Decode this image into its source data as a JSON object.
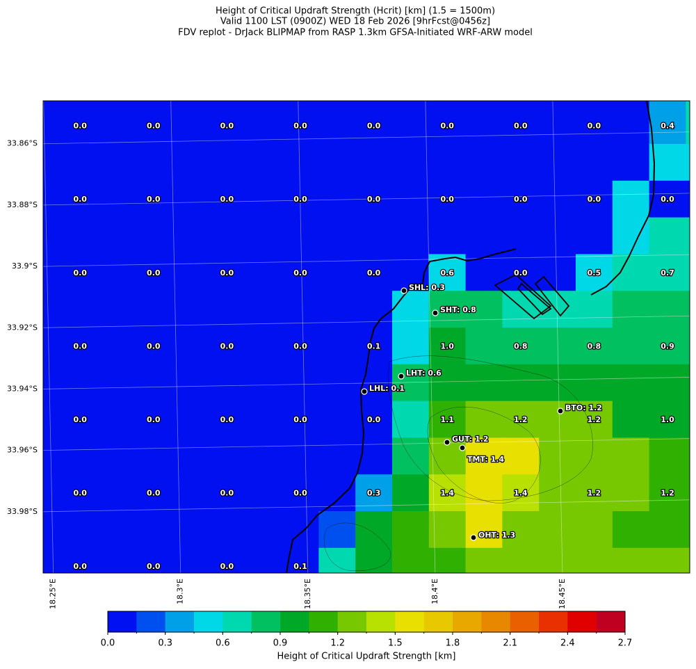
{
  "figure": {
    "title": [
      "Height of Critical Updraft Strength (Hcrit) [km] (1.5 = 1500m)",
      "Valid 1100 LST (0900Z) WED 18 Feb 2026 [9hrFcst@0456z]",
      "FDV replot - DrJack BLIPMAP from RASP 1.3km GFSA-Initiated WRF-ARW model"
    ],
    "xlim": [
      18.246,
      18.5
    ],
    "ylim": [
      -34.0,
      -33.846
    ],
    "xticks": [
      {
        "value": 18.25,
        "label": "18.25°E"
      },
      {
        "value": 18.3,
        "label": "18.3°E"
      },
      {
        "value": 18.35,
        "label": "18.35°E"
      },
      {
        "value": 18.4,
        "label": "18.4°E"
      },
      {
        "value": 18.45,
        "label": "18.45°E"
      }
    ],
    "yticks": [
      {
        "value": -33.86,
        "label": "33.86°S"
      },
      {
        "value": -33.88,
        "label": "33.88°S"
      },
      {
        "value": -33.9,
        "label": "33.9°S"
      },
      {
        "value": -33.92,
        "label": "33.92°S"
      },
      {
        "value": -33.94,
        "label": "33.94°S"
      },
      {
        "value": -33.96,
        "label": "33.96°S"
      },
      {
        "value": -33.98,
        "label": "33.98°S"
      }
    ],
    "grid": true,
    "cells": [
      [
        0,
        0,
        0,
        0,
        0,
        0,
        0,
        0,
        0,
        0,
        0,
        0,
        0,
        0,
        0,
        0,
        0,
        0.4,
        0.7
      ],
      [
        0,
        0,
        0,
        0,
        0,
        0,
        0,
        0,
        0,
        0,
        0,
        0,
        0,
        0,
        0,
        0,
        0,
        0.4,
        0.7
      ],
      [
        0,
        0,
        0,
        0,
        0,
        0,
        0,
        0,
        0,
        0,
        0,
        0,
        0,
        0,
        0,
        0,
        0,
        0.5,
        0.5
      ],
      [
        0,
        0,
        0,
        0,
        0,
        0,
        0,
        0,
        0,
        0,
        0,
        0,
        0,
        0,
        0,
        0,
        0.5,
        0,
        0
      ],
      [
        0,
        0,
        0,
        0,
        0,
        0,
        0,
        0,
        0,
        0,
        0,
        0,
        0,
        0,
        0,
        0,
        0.5,
        0.7,
        0.7
      ],
      [
        0,
        0,
        0,
        0,
        0,
        0,
        0,
        0,
        0,
        0,
        0,
        0.55,
        0,
        0,
        0,
        0.5,
        0.7,
        0.7,
        0.7
      ],
      [
        0,
        0,
        0,
        0,
        0,
        0,
        0,
        0,
        0,
        0,
        0.5,
        0.8,
        0.8,
        0.7,
        0.7,
        0.7,
        0.8,
        0.8,
        0.8
      ],
      [
        0,
        0,
        0,
        0,
        0,
        0,
        0,
        0,
        0,
        0,
        0.5,
        0.9,
        0.8,
        0.8,
        0.8,
        0.8,
        0.85,
        0.85,
        0.85
      ],
      [
        0,
        0,
        0,
        0,
        0,
        0,
        0,
        0,
        0,
        0,
        0.8,
        1.0,
        1.0,
        1.0,
        1.0,
        1.0,
        1.0,
        1.0,
        1.0
      ],
      [
        0,
        0,
        0,
        0,
        0,
        0,
        0,
        0,
        0,
        0,
        0.7,
        1.1,
        1.3,
        1.2,
        1.2,
        1.2,
        1.0,
        1.0,
        1.0
      ],
      [
        0,
        0,
        0,
        0,
        0,
        0,
        0,
        0,
        0,
        0,
        0.8,
        1.2,
        1.6,
        1.6,
        1.3,
        1.2,
        1.2,
        1.1,
        1.1
      ],
      [
        0,
        0,
        0,
        0,
        0,
        0,
        0,
        0,
        0,
        0.3,
        1.0,
        1.4,
        1.5,
        1.4,
        1.3,
        1.2,
        1.2,
        1.1,
        1.1
      ],
      [
        0,
        0,
        0,
        0,
        0,
        0,
        0,
        0,
        0.2,
        1.0,
        1.1,
        1.2,
        1.5,
        1.3,
        1.3,
        1.3,
        1.1,
        1.1,
        1.1
      ],
      [
        0,
        0,
        0,
        0,
        0,
        0,
        0,
        0,
        0.7,
        1.0,
        1.1,
        1.1,
        1.3,
        1.3,
        1.3,
        1.3,
        1.3,
        1.3,
        1.3
      ]
    ],
    "sample_labels": [
      [
        "0.0",
        "0.0",
        "0.0",
        "0.0",
        "0.0",
        "0.0",
        "0.0",
        "0.0",
        "0.4"
      ],
      [
        "0.0",
        "0.0",
        "0.0",
        "0.0",
        "0.0",
        "0.0",
        "0.0",
        "0.0",
        "0.0"
      ],
      [
        "0.0",
        "0.0",
        "0.0",
        "0.0",
        "0.0",
        "0.6",
        "0.0",
        "0.5",
        "0.7"
      ],
      [
        "0.0",
        "0.0",
        "0.0",
        "0.0",
        "0.1",
        "1.0",
        "0.8",
        "0.8",
        "0.9"
      ],
      [
        "0.0",
        "0.0",
        "0.0",
        "0.0",
        "0.0",
        "1.1",
        "1.2",
        "1.2",
        "1.0"
      ],
      [
        "0.0",
        "0.0",
        "0.0",
        "0.0",
        "0.3",
        "1.4",
        "1.4",
        "1.2",
        "1.2"
      ],
      [
        "0.0",
        "0.0",
        "0.0",
        "0.1"
      ]
    ],
    "sites": [
      "SHL: 0.3",
      "SHT: 0.8",
      "LHT: 0.6",
      "LHL: 0.1",
      "BTO: 1.2",
      "GUT: 1.2",
      "TMT: 1.4",
      "OHT: 1.3"
    ],
    "colorbar": {
      "label": "Height of Critical Updraft Strength [km]",
      "bounds": [
        0,
        0.15,
        0.3,
        0.45,
        0.6,
        0.75,
        0.9,
        1.05,
        1.2,
        1.35,
        1.5,
        1.65,
        1.8,
        1.95,
        2.1,
        2.25,
        2.4,
        2.55,
        2.7
      ],
      "colors": [
        "#0010f0",
        "#0050f0",
        "#00a0e8",
        "#00d8e8",
        "#00d8b0",
        "#00c060",
        "#00a828",
        "#30b000",
        "#78c800",
        "#b8e000",
        "#e8e000",
        "#e8c800",
        "#e8a800",
        "#e88800",
        "#e86000",
        "#e83000",
        "#e00000",
        "#c00020"
      ],
      "ticks": [
        {
          "value": 0,
          "label": "0.0"
        },
        {
          "value": 0.3,
          "label": "0.3"
        },
        {
          "value": 0.6,
          "label": "0.6"
        },
        {
          "value": 0.9,
          "label": "0.9"
        },
        {
          "value": 1.2,
          "label": "1.2"
        },
        {
          "value": 1.5,
          "label": "1.5"
        },
        {
          "value": 1.8,
          "label": "1.8"
        },
        {
          "value": 2.1,
          "label": "2.1"
        },
        {
          "value": 2.4,
          "label": "2.4"
        },
        {
          "value": 2.7,
          "label": "2.7"
        }
      ]
    }
  }
}
